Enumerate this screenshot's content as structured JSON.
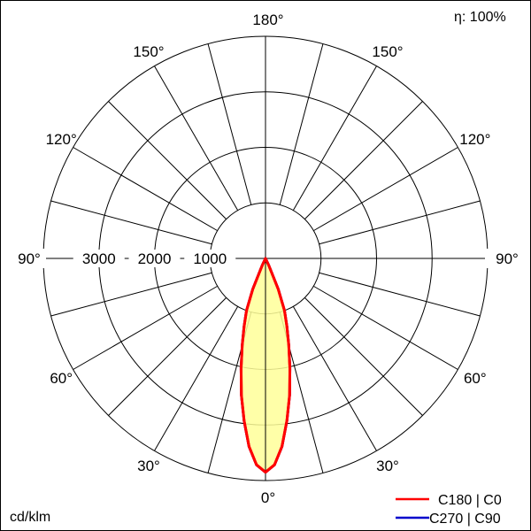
{
  "chart_data": {
    "type": "polar",
    "efficiency_label": "η: 100%",
    "unit_label": "cd/klm",
    "radial_ticks": [
      1000,
      2000,
      3000
    ],
    "radial_max": 4000,
    "angle_ticks": [
      0,
      30,
      60,
      90,
      120,
      150,
      180
    ],
    "angle_tick_labels": [
      "0°",
      "30°",
      "60°",
      "90°",
      "120°",
      "150°",
      "180°"
    ],
    "grid_angle_step": 15,
    "grid": true,
    "fill_color": "#ffff99",
    "legend_position": "bottom-right",
    "series": [
      {
        "name": "C180 | C0",
        "color": "#ff0000",
        "angles": [
          0,
          2.5,
          5,
          7.5,
          10,
          12.5,
          15,
          17.5,
          20,
          22.5,
          25,
          27.5
        ],
        "values": [
          3850,
          3720,
          3400,
          2950,
          2500,
          2030,
          1620,
          1280,
          1000,
          600,
          150,
          0
        ]
      },
      {
        "name": "C270 | C90",
        "color": "#0000cc",
        "angles": [
          0,
          2.5,
          5,
          7.5,
          10,
          12.5,
          15,
          17.5,
          20,
          22.5,
          25,
          27.5
        ],
        "values": [
          3850,
          3720,
          3400,
          2950,
          2500,
          2030,
          1620,
          1280,
          1000,
          600,
          150,
          0
        ]
      }
    ]
  }
}
